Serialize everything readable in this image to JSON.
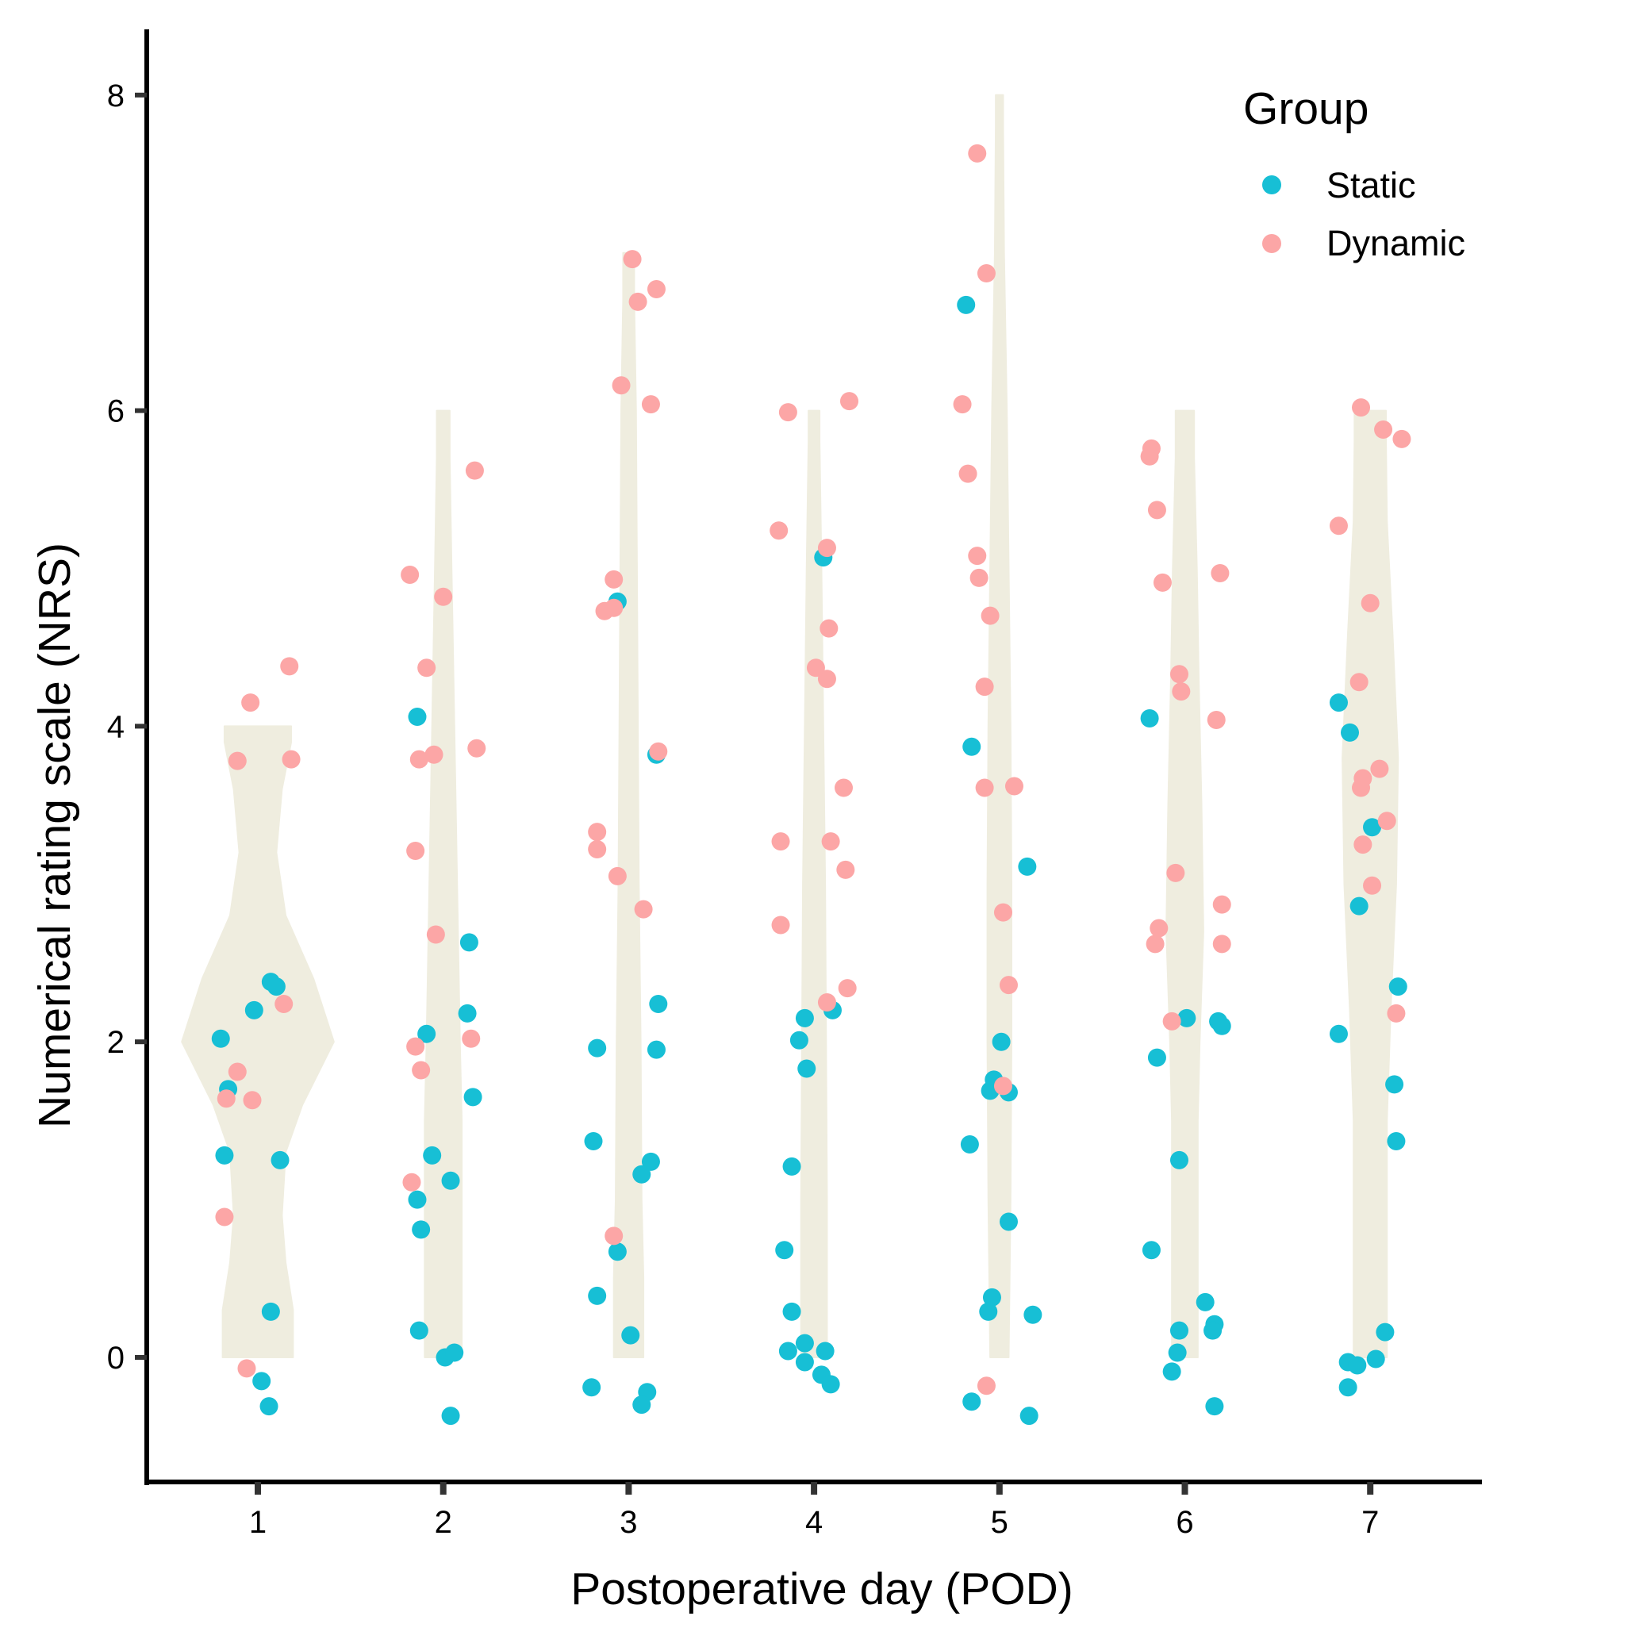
{
  "chart_data": {
    "type": "scatter",
    "subtype": "violin-with-jittered-points",
    "title": "",
    "xlabel": "Postoperative day (POD)",
    "ylabel": "Numerical rating scale (NRS)",
    "x_ticks": [
      "1",
      "2",
      "3",
      "4",
      "5",
      "6",
      "7"
    ],
    "y_ticks": [
      "0",
      "2",
      "4",
      "6",
      "8"
    ],
    "xlim": [
      0.4,
      7.6
    ],
    "ylim": [
      -0.8,
      8.4
    ],
    "grid": false,
    "legend": {
      "title": "Group",
      "position": "top-right",
      "entries": [
        {
          "name": "Static",
          "color": "#17BFD5"
        },
        {
          "name": "Dynamic",
          "color": "#FCA6A6"
        }
      ]
    },
    "violin_color": "#EFEDDF",
    "violins": [
      {
        "pod": 1,
        "ymin": 0,
        "ymax": 4,
        "profile": [
          [
            0,
            0.19
          ],
          [
            0.3,
            0.19
          ],
          [
            0.6,
            0.15
          ],
          [
            0.9,
            0.13
          ],
          [
            1.3,
            0.15
          ],
          [
            1.6,
            0.24
          ],
          [
            2.0,
            0.41
          ],
          [
            2.4,
            0.3
          ],
          [
            2.8,
            0.15
          ],
          [
            3.2,
            0.1
          ],
          [
            3.6,
            0.13
          ],
          [
            3.9,
            0.18
          ],
          [
            4,
            0.18
          ]
        ]
      },
      {
        "pod": 2,
        "ymin": 0,
        "ymax": 6,
        "profile": [
          [
            0,
            0.1
          ],
          [
            0.5,
            0.1
          ],
          [
            1.0,
            0.1
          ],
          [
            1.5,
            0.1
          ],
          [
            2.0,
            0.09
          ],
          [
            3.0,
            0.075
          ],
          [
            4.0,
            0.06
          ],
          [
            5.0,
            0.045
          ],
          [
            5.7,
            0.035
          ],
          [
            6,
            0.035
          ]
        ]
      },
      {
        "pod": 3,
        "ymin": 0,
        "ymax": 7,
        "profile": [
          [
            0,
            0.08
          ],
          [
            0.5,
            0.08
          ],
          [
            1.0,
            0.07
          ],
          [
            2.0,
            0.065
          ],
          [
            3.0,
            0.055
          ],
          [
            4.0,
            0.05
          ],
          [
            5.0,
            0.045
          ],
          [
            6.0,
            0.04
          ],
          [
            6.7,
            0.03
          ],
          [
            7,
            0.03
          ]
        ]
      },
      {
        "pod": 4,
        "ymin": 0,
        "ymax": 6,
        "profile": [
          [
            0,
            0.07
          ],
          [
            1.0,
            0.07
          ],
          [
            2.0,
            0.065
          ],
          [
            3.0,
            0.06
          ],
          [
            4.0,
            0.05
          ],
          [
            5.0,
            0.04
          ],
          [
            5.8,
            0.03
          ],
          [
            6,
            0.03
          ]
        ]
      },
      {
        "pod": 5,
        "ymin": 0,
        "ymax": 8,
        "profile": [
          [
            0,
            0.05
          ],
          [
            1.0,
            0.06
          ],
          [
            2.0,
            0.065
          ],
          [
            3.0,
            0.065
          ],
          [
            4.0,
            0.06
          ],
          [
            5.0,
            0.05
          ],
          [
            6.0,
            0.04
          ],
          [
            7.0,
            0.025
          ],
          [
            7.8,
            0.02
          ],
          [
            8,
            0.02
          ]
        ]
      },
      {
        "pod": 6,
        "ymin": 0,
        "ymax": 6,
        "profile": [
          [
            0,
            0.07
          ],
          [
            0.7,
            0.07
          ],
          [
            1.5,
            0.07
          ],
          [
            2.0,
            0.08
          ],
          [
            2.7,
            0.1
          ],
          [
            3.5,
            0.09
          ],
          [
            4.3,
            0.075
          ],
          [
            5.0,
            0.065
          ],
          [
            5.7,
            0.05
          ],
          [
            6,
            0.05
          ]
        ]
      },
      {
        "pod": 7,
        "ymin": 0,
        "ymax": 6,
        "profile": [
          [
            0,
            0.09
          ],
          [
            0.8,
            0.09
          ],
          [
            1.5,
            0.09
          ],
          [
            2.2,
            0.11
          ],
          [
            3.0,
            0.14
          ],
          [
            3.8,
            0.15
          ],
          [
            4.6,
            0.12
          ],
          [
            5.3,
            0.09
          ],
          [
            5.8,
            0.085
          ],
          [
            6,
            0.085
          ]
        ]
      }
    ],
    "series": [
      {
        "name": "Static",
        "color": "#17BFD5",
        "points": [
          [
            0.8,
            2.02
          ],
          [
            0.84,
            1.7
          ],
          [
            0.82,
            1.28
          ],
          [
            0.98,
            2.2
          ],
          [
            1.07,
            2.38
          ],
          [
            1.1,
            2.35
          ],
          [
            1.12,
            1.25
          ],
          [
            1.07,
            0.29
          ],
          [
            1.02,
            -0.15
          ],
          [
            1.06,
            -0.31
          ],
          [
            1.86,
            4.06
          ],
          [
            1.91,
            2.05
          ],
          [
            2.14,
            2.63
          ],
          [
            2.13,
            2.18
          ],
          [
            2.16,
            1.65
          ],
          [
            1.94,
            1.28
          ],
          [
            1.86,
            1.0
          ],
          [
            2.04,
            1.12
          ],
          [
            1.88,
            0.81
          ],
          [
            1.87,
            0.17
          ],
          [
            2.01,
            0.0
          ],
          [
            2.06,
            0.03
          ],
          [
            2.04,
            -0.37
          ],
          [
            2.94,
            4.79
          ],
          [
            3.15,
            3.82
          ],
          [
            3.16,
            2.24
          ],
          [
            2.83,
            1.96
          ],
          [
            3.15,
            1.95
          ],
          [
            2.81,
            1.37
          ],
          [
            3.12,
            1.24
          ],
          [
            3.07,
            1.16
          ],
          [
            2.94,
            0.67
          ],
          [
            2.83,
            0.39
          ],
          [
            3.01,
            0.14
          ],
          [
            2.8,
            -0.19
          ],
          [
            3.1,
            -0.22
          ],
          [
            3.07,
            -0.3
          ],
          [
            4.05,
            5.07
          ],
          [
            3.95,
            2.15
          ],
          [
            4.1,
            2.2
          ],
          [
            3.92,
            2.01
          ],
          [
            3.96,
            1.83
          ],
          [
            3.88,
            1.21
          ],
          [
            3.84,
            0.68
          ],
          [
            3.88,
            0.29
          ],
          [
            3.86,
            0.04
          ],
          [
            3.95,
            0.09
          ],
          [
            4.06,
            0.04
          ],
          [
            3.95,
            -0.03
          ],
          [
            4.04,
            -0.11
          ],
          [
            4.09,
            -0.17
          ],
          [
            4.82,
            6.67
          ],
          [
            4.85,
            3.87
          ],
          [
            5.15,
            3.11
          ],
          [
            5.01,
            2.0
          ],
          [
            4.97,
            1.76
          ],
          [
            4.95,
            1.69
          ],
          [
            5.05,
            1.68
          ],
          [
            4.84,
            1.35
          ],
          [
            5.05,
            0.86
          ],
          [
            4.96,
            0.38
          ],
          [
            4.94,
            0.29
          ],
          [
            5.18,
            0.27
          ],
          [
            4.85,
            -0.28
          ],
          [
            5.16,
            -0.37
          ],
          [
            5.81,
            4.05
          ],
          [
            6.01,
            2.15
          ],
          [
            6.18,
            2.13
          ],
          [
            6.2,
            2.1
          ],
          [
            5.85,
            1.9
          ],
          [
            5.97,
            1.25
          ],
          [
            5.82,
            0.68
          ],
          [
            6.11,
            0.35
          ],
          [
            6.16,
            0.21
          ],
          [
            5.97,
            0.17
          ],
          [
            6.15,
            0.17
          ],
          [
            5.96,
            0.03
          ],
          [
            5.93,
            -0.09
          ],
          [
            6.16,
            -0.31
          ],
          [
            6.83,
            4.15
          ],
          [
            6.89,
            3.96
          ],
          [
            7.01,
            3.36
          ],
          [
            6.94,
            2.86
          ],
          [
            7.15,
            2.35
          ],
          [
            6.83,
            2.05
          ],
          [
            7.13,
            1.73
          ],
          [
            7.14,
            1.37
          ],
          [
            7.08,
            0.16
          ],
          [
            6.88,
            -0.03
          ],
          [
            6.93,
            -0.05
          ],
          [
            7.03,
            -0.01
          ],
          [
            6.88,
            -0.19
          ]
        ]
      },
      {
        "name": "Dynamic",
        "color": "#FCA6A6",
        "points": [
          [
            0.96,
            4.15
          ],
          [
            1.17,
            4.38
          ],
          [
            0.89,
            3.78
          ],
          [
            1.18,
            3.79
          ],
          [
            1.14,
            2.24
          ],
          [
            0.89,
            1.81
          ],
          [
            0.97,
            1.63
          ],
          [
            0.83,
            1.64
          ],
          [
            0.82,
            0.89
          ],
          [
            0.94,
            -0.07
          ],
          [
            1.82,
            4.96
          ],
          [
            2.17,
            5.62
          ],
          [
            2.0,
            4.82
          ],
          [
            1.91,
            4.37
          ],
          [
            1.87,
            3.79
          ],
          [
            1.95,
            3.82
          ],
          [
            2.18,
            3.86
          ],
          [
            1.85,
            3.21
          ],
          [
            1.96,
            2.68
          ],
          [
            1.85,
            1.97
          ],
          [
            2.15,
            2.02
          ],
          [
            1.88,
            1.82
          ],
          [
            1.83,
            1.11
          ],
          [
            3.02,
            6.96
          ],
          [
            3.15,
            6.77
          ],
          [
            3.05,
            6.69
          ],
          [
            2.96,
            6.16
          ],
          [
            3.12,
            6.04
          ],
          [
            2.92,
            4.93
          ],
          [
            2.87,
            4.73
          ],
          [
            2.92,
            4.75
          ],
          [
            3.16,
            3.84
          ],
          [
            2.83,
            3.33
          ],
          [
            2.83,
            3.22
          ],
          [
            2.94,
            3.05
          ],
          [
            3.08,
            2.84
          ],
          [
            2.92,
            0.77
          ],
          [
            3.86,
            5.99
          ],
          [
            4.19,
            6.06
          ],
          [
            3.81,
            5.24
          ],
          [
            4.07,
            5.13
          ],
          [
            4.08,
            4.62
          ],
          [
            4.01,
            4.37
          ],
          [
            4.07,
            4.3
          ],
          [
            4.16,
            3.61
          ],
          [
            3.82,
            3.27
          ],
          [
            4.09,
            3.27
          ],
          [
            4.17,
            3.09
          ],
          [
            3.82,
            2.74
          ],
          [
            4.18,
            2.34
          ],
          [
            4.07,
            2.25
          ],
          [
            4.88,
            7.63
          ],
          [
            4.93,
            6.87
          ],
          [
            4.8,
            6.04
          ],
          [
            4.83,
            5.6
          ],
          [
            4.88,
            5.08
          ],
          [
            4.89,
            4.94
          ],
          [
            4.95,
            4.7
          ],
          [
            4.92,
            4.25
          ],
          [
            5.08,
            3.62
          ],
          [
            4.92,
            3.61
          ],
          [
            5.02,
            2.82
          ],
          [
            5.05,
            2.36
          ],
          [
            5.02,
            1.72
          ],
          [
            4.93,
            -0.18
          ],
          [
            5.82,
            5.76
          ],
          [
            5.81,
            5.71
          ],
          [
            5.85,
            5.37
          ],
          [
            5.88,
            4.91
          ],
          [
            6.19,
            4.97
          ],
          [
            5.97,
            4.33
          ],
          [
            5.98,
            4.22
          ],
          [
            6.17,
            4.04
          ],
          [
            5.95,
            3.07
          ],
          [
            5.86,
            2.72
          ],
          [
            5.84,
            2.62
          ],
          [
            6.2,
            2.87
          ],
          [
            6.2,
            2.62
          ],
          [
            5.93,
            2.13
          ],
          [
            6.95,
            6.02
          ],
          [
            7.07,
            5.88
          ],
          [
            7.17,
            5.82
          ],
          [
            6.83,
            5.27
          ],
          [
            7.0,
            4.78
          ],
          [
            6.94,
            4.28
          ],
          [
            6.96,
            3.67
          ],
          [
            7.05,
            3.73
          ],
          [
            6.95,
            3.61
          ],
          [
            7.09,
            3.4
          ],
          [
            6.96,
            3.25
          ],
          [
            7.01,
            2.99
          ],
          [
            7.14,
            2.18
          ]
        ]
      }
    ]
  }
}
